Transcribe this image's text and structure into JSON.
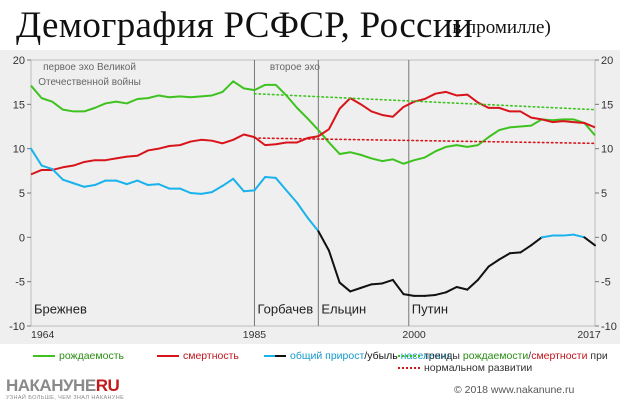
{
  "header": {
    "title": "Демография РСФСР, России",
    "subtitle": "(в промилле)"
  },
  "chart_data": {
    "type": "line",
    "x_range": [
      1964,
      2017
    ],
    "ylim": [
      -10,
      20
    ],
    "y_ticks": [
      -10,
      -5,
      0,
      5,
      10,
      15,
      20
    ],
    "x_tick_labels": [
      "1964",
      "1985",
      "2000",
      "2017"
    ],
    "x_tick_values": [
      1964,
      1985,
      2000,
      2017
    ],
    "grid": false,
    "series": [
      {
        "name": "рождаемость",
        "color": "#3ec21f",
        "x": [
          1964,
          1965,
          1966,
          1967,
          1968,
          1969,
          1970,
          1971,
          1972,
          1973,
          1974,
          1975,
          1976,
          1977,
          1978,
          1979,
          1980,
          1981,
          1982,
          1983,
          1984,
          1985,
          1986,
          1987,
          1988,
          1989,
          1990,
          1991,
          1992,
          1993,
          1994,
          1995,
          1996,
          1997,
          1998,
          1999,
          2000,
          2001,
          2002,
          2003,
          2004,
          2005,
          2006,
          2007,
          2008,
          2009,
          2010,
          2011,
          2012,
          2013,
          2014,
          2015,
          2016,
          2017
        ],
        "values": [
          17.1,
          15.7,
          15.3,
          14.4,
          14.2,
          14.2,
          14.6,
          15.1,
          15.3,
          15.1,
          15.6,
          15.7,
          16.0,
          15.8,
          15.9,
          15.8,
          15.9,
          16.0,
          16.4,
          17.6,
          16.8,
          16.6,
          17.2,
          17.2,
          16.0,
          14.6,
          13.4,
          12.1,
          10.7,
          9.4,
          9.6,
          9.3,
          8.9,
          8.6,
          8.8,
          8.3,
          8.7,
          9.0,
          9.7,
          10.2,
          10.4,
          10.2,
          10.4,
          11.3,
          12.1,
          12.4,
          12.5,
          12.6,
          13.3,
          13.2,
          13.3,
          13.3,
          12.9,
          11.5
        ]
      },
      {
        "name": "смертность",
        "color": "#d8141b",
        "x": [
          1964,
          1965,
          1966,
          1967,
          1968,
          1969,
          1970,
          1971,
          1972,
          1973,
          1974,
          1975,
          1976,
          1977,
          1978,
          1979,
          1980,
          1981,
          1982,
          1983,
          1984,
          1985,
          1986,
          1987,
          1988,
          1989,
          1990,
          1991,
          1992,
          1993,
          1994,
          1995,
          1996,
          1997,
          1998,
          1999,
          2000,
          2001,
          2002,
          2003,
          2004,
          2005,
          2006,
          2007,
          2008,
          2009,
          2010,
          2011,
          2012,
          2013,
          2014,
          2015,
          2016,
          2017
        ],
        "values": [
          7.1,
          7.6,
          7.6,
          7.9,
          8.1,
          8.5,
          8.7,
          8.7,
          8.9,
          9.1,
          9.2,
          9.8,
          10.0,
          10.3,
          10.4,
          10.8,
          11.0,
          10.9,
          10.6,
          11.0,
          11.6,
          11.3,
          10.4,
          10.5,
          10.7,
          10.7,
          11.2,
          11.4,
          12.2,
          14.5,
          15.7,
          15.0,
          14.2,
          13.8,
          13.6,
          14.7,
          15.3,
          15.6,
          16.2,
          16.4,
          16.0,
          16.1,
          15.2,
          14.6,
          14.6,
          14.2,
          14.2,
          13.5,
          13.3,
          13.0,
          13.1,
          13.0,
          12.9,
          12.4
        ]
      },
      {
        "name": "общий прирост/убыль населения",
        "color": "#1ab2ec",
        "negative_color": "#111111",
        "x": [
          1964,
          1965,
          1966,
          1967,
          1968,
          1969,
          1970,
          1971,
          1972,
          1973,
          1974,
          1975,
          1976,
          1977,
          1978,
          1979,
          1980,
          1981,
          1982,
          1983,
          1984,
          1985,
          1986,
          1987,
          1988,
          1989,
          1990,
          1991,
          1992,
          1993,
          1994,
          1995,
          1996,
          1997,
          1998,
          1999,
          2000,
          2001,
          2002,
          2003,
          2004,
          2005,
          2006,
          2007,
          2008,
          2009,
          2010,
          2011,
          2012,
          2013,
          2014,
          2015,
          2016,
          2017
        ],
        "values": [
          10.0,
          8.1,
          7.7,
          6.5,
          6.1,
          5.7,
          5.9,
          6.4,
          6.4,
          6.0,
          6.4,
          5.9,
          6.0,
          5.5,
          5.5,
          5.0,
          4.9,
          5.1,
          5.8,
          6.6,
          5.2,
          5.3,
          6.8,
          6.7,
          5.3,
          3.9,
          2.2,
          0.7,
          -1.5,
          -5.1,
          -6.1,
          -5.7,
          -5.3,
          -5.2,
          -4.8,
          -6.4,
          -6.6,
          -6.6,
          -6.5,
          -6.2,
          -5.6,
          -5.9,
          -4.8,
          -3.3,
          -2.5,
          -1.8,
          -1.7,
          -0.9,
          0.0,
          0.2,
          0.2,
          0.3,
          0.0,
          -0.9
        ]
      },
      {
        "name": "тренд рождаемости",
        "color": "#3ec21f",
        "style": "dotted",
        "x": [
          1985,
          2017
        ],
        "values": [
          16.2,
          14.4
        ]
      },
      {
        "name": "тренд смертности",
        "color": "#d8141b",
        "style": "dotted",
        "x": [
          1985,
          2017
        ],
        "values": [
          11.2,
          10.6
        ]
      }
    ],
    "eras": [
      {
        "label": "Брежнев",
        "start": 1964
      },
      {
        "label": "Горбачев",
        "start": 1985
      },
      {
        "label": "Ельцин",
        "start": 1991
      },
      {
        "label": "Путин",
        "start": 1999.5
      }
    ],
    "annotations": [
      {
        "text": "первое эхо Великой",
        "x": 1969.5,
        "y": 18.9
      },
      {
        "text": "Отечественной войны",
        "x": 1969.5,
        "y": 17.2
      },
      {
        "text": "второе эхо",
        "x": 1988.8,
        "y": 18.9
      }
    ]
  },
  "legend": {
    "birth": "рождаемость",
    "death": "смертность",
    "growth_a": "общий прирост",
    "growth_sep": "/",
    "growth_b": "убыль",
    "growth_c": "населения",
    "trend_a": "тренды",
    "trend_b": "рождаемости",
    "trend_sep": "/",
    "trend_c": "смертности",
    "trend_d": "при",
    "trend_e": "нормальном развитии"
  },
  "footer": {
    "logo": "НАКАНУНЕ",
    "logo_ru": "RU",
    "logo_sub": "УЗНАЙ БОЛЬШЕ, ЧЕМ ЗНАЛ НАКАНУНЕ",
    "copyright": "© 2018 www.nakanune.ru"
  },
  "colors": {
    "birth": "#3ec21f",
    "death": "#d8141b",
    "growth": "#1ab2ec",
    "decline": "#111111",
    "background": "#efefef"
  }
}
